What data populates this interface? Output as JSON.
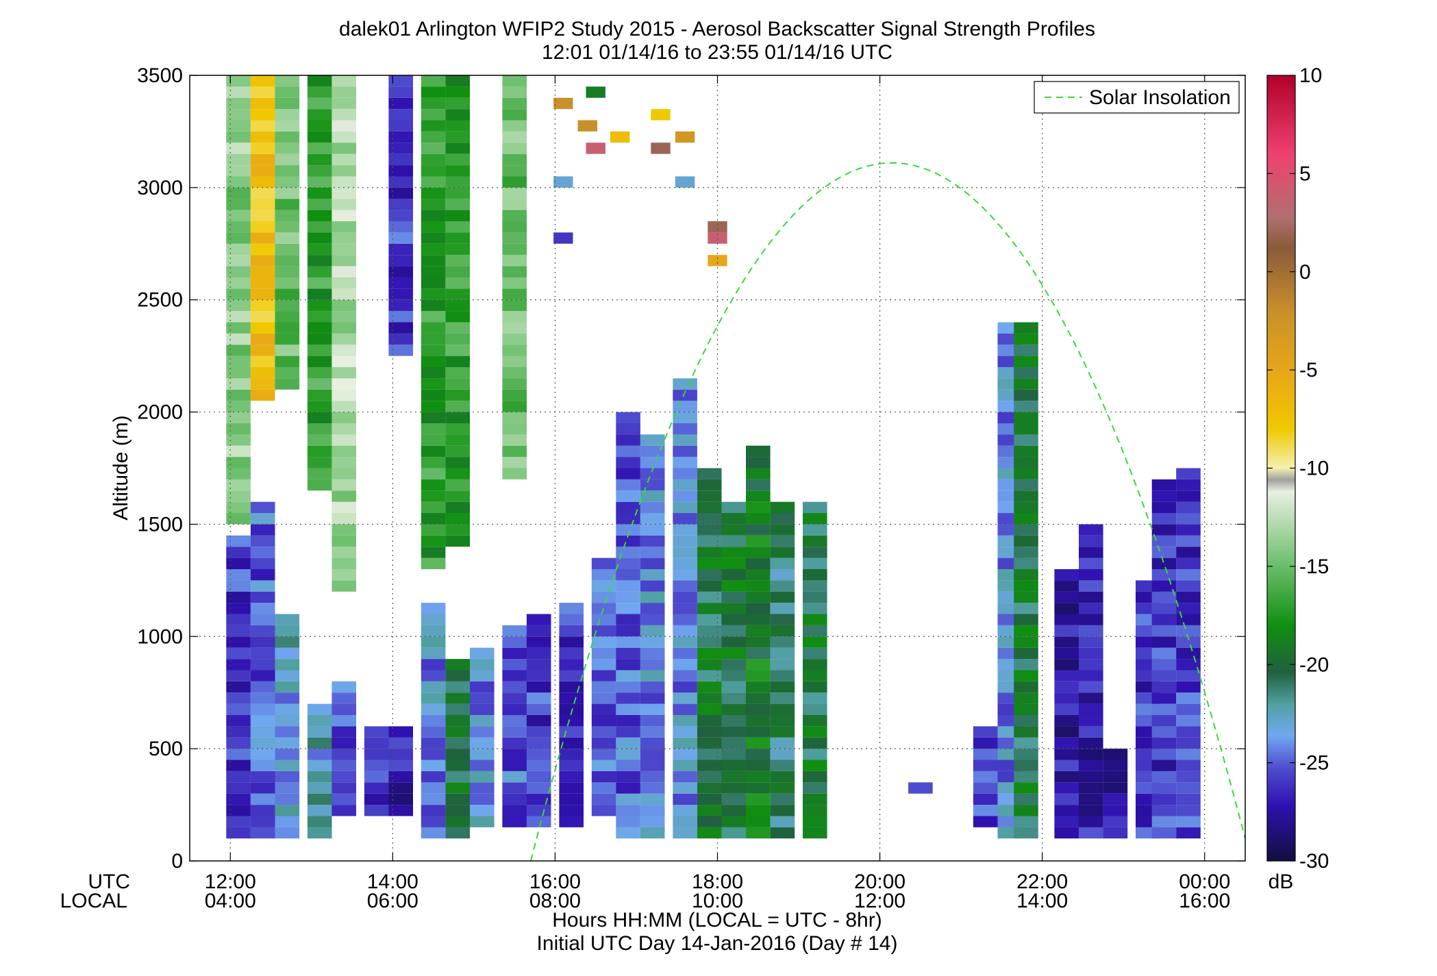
{
  "chart_data": {
    "type": "heatmap",
    "title": "dalek01 Arlington WFIP2 Study 2015 - Aerosol Backscatter Signal Strength Profiles",
    "subtitle": "12:01 01/14/16 to 23:55 01/14/16  UTC",
    "xlabel": "Hours HH:MM  (LOCAL = UTC - 8hr)",
    "xlabel2": "Initial UTC Day 14-Jan-2016 (Day # 14)",
    "ylabel": "Altitude (m)",
    "xrow_utc_label": "UTC",
    "xrow_local_label": "LOCAL",
    "x_utc_ticks": [
      "12:00",
      "14:00",
      "16:00",
      "18:00",
      "20:00",
      "22:00",
      "00:00"
    ],
    "x_local_ticks": [
      "04:00",
      "06:00",
      "08:00",
      "10:00",
      "12:00",
      "14:00",
      "16:00"
    ],
    "x_tick_hours": [
      12,
      14,
      16,
      18,
      20,
      22,
      24
    ],
    "xlim_hours": [
      11.5,
      24.5
    ],
    "ylim": [
      0,
      3500
    ],
    "y_ticks": [
      0,
      500,
      1000,
      1500,
      2000,
      2500,
      3000,
      3500
    ],
    "grid": true,
    "legend": {
      "placement": "top-right",
      "entries": [
        "Solar Insolation"
      ]
    },
    "colorbar": {
      "unit": "dB",
      "range": [
        -30,
        10
      ],
      "ticks": [
        10,
        5,
        0,
        -5,
        -10,
        -15,
        -20,
        -25,
        -30
      ]
    },
    "solar_insolation": {
      "style": "dashed",
      "color": "#33dd33",
      "start_hour": 15.7,
      "peak_hour": 20.15,
      "peak_altitude_m": 3110,
      "end_hour": 24.5,
      "end_altitude_m": 100
    },
    "profiles": [
      {
        "hour": 12.1,
        "bottom_m": 100,
        "top_m": 1450,
        "dbz": -26
      },
      {
        "hour": 12.1,
        "bottom_m": 1500,
        "top_m": 3500,
        "dbz": -14
      },
      {
        "hour": 12.4,
        "bottom_m": 100,
        "top_m": 1600,
        "dbz": -25
      },
      {
        "hour": 12.4,
        "bottom_m": 2050,
        "top_m": 3500,
        "dbz": -7
      },
      {
        "hour": 12.7,
        "bottom_m": 100,
        "top_m": 1100,
        "dbz": -23
      },
      {
        "hour": 12.7,
        "bottom_m": 2100,
        "top_m": 3500,
        "dbz": -15
      },
      {
        "hour": 13.1,
        "bottom_m": 100,
        "top_m": 700,
        "dbz": -23
      },
      {
        "hour": 13.1,
        "bottom_m": 1650,
        "top_m": 3500,
        "dbz": -17
      },
      {
        "hour": 13.4,
        "bottom_m": 200,
        "top_m": 800,
        "dbz": -25
      },
      {
        "hour": 13.4,
        "bottom_m": 1200,
        "top_m": 3500,
        "dbz": -13
      },
      {
        "hour": 13.8,
        "bottom_m": 200,
        "top_m": 600,
        "dbz": -26
      },
      {
        "hour": 14.1,
        "bottom_m": 200,
        "top_m": 600,
        "dbz": -27
      },
      {
        "hour": 14.1,
        "bottom_m": 2250,
        "top_m": 3500,
        "dbz": -26
      },
      {
        "hour": 14.5,
        "bottom_m": 100,
        "top_m": 1150,
        "dbz": -24
      },
      {
        "hour": 14.5,
        "bottom_m": 1300,
        "top_m": 3500,
        "dbz": -17
      },
      {
        "hour": 14.8,
        "bottom_m": 100,
        "top_m": 900,
        "dbz": -20
      },
      {
        "hour": 14.8,
        "bottom_m": 1400,
        "top_m": 3500,
        "dbz": -17
      },
      {
        "hour": 15.1,
        "bottom_m": 150,
        "top_m": 950,
        "dbz": -24
      },
      {
        "hour": 15.5,
        "bottom_m": 150,
        "top_m": 1050,
        "dbz": -25
      },
      {
        "hour": 15.5,
        "bottom_m": 1700,
        "top_m": 3500,
        "dbz": -15
      },
      {
        "hour": 15.8,
        "bottom_m": 150,
        "top_m": 1100,
        "dbz": -26
      },
      {
        "hour": 16.2,
        "bottom_m": 150,
        "top_m": 1150,
        "dbz": -26
      },
      {
        "hour": 16.6,
        "bottom_m": 200,
        "top_m": 1350,
        "dbz": -25
      },
      {
        "hour": 16.9,
        "bottom_m": 100,
        "top_m": 2000,
        "dbz": -25
      },
      {
        "hour": 17.2,
        "bottom_m": 100,
        "top_m": 1900,
        "dbz": -24
      },
      {
        "hour": 17.6,
        "bottom_m": 100,
        "top_m": 2150,
        "dbz": -24
      },
      {
        "hour": 17.9,
        "bottom_m": 100,
        "top_m": 1750,
        "dbz": -20
      },
      {
        "hour": 18.2,
        "bottom_m": 100,
        "top_m": 1600,
        "dbz": -20
      },
      {
        "hour": 18.5,
        "bottom_m": 100,
        "top_m": 1850,
        "dbz": -19
      },
      {
        "hour": 18.8,
        "bottom_m": 100,
        "top_m": 1600,
        "dbz": -21
      },
      {
        "hour": 19.2,
        "bottom_m": 100,
        "top_m": 1600,
        "dbz": -20
      },
      {
        "hour": 20.5,
        "bottom_m": 300,
        "top_m": 350,
        "dbz": -26
      },
      {
        "hour": 21.3,
        "bottom_m": 150,
        "top_m": 600,
        "dbz": -26
      },
      {
        "hour": 21.6,
        "bottom_m": 100,
        "top_m": 2400,
        "dbz": -24
      },
      {
        "hour": 21.8,
        "bottom_m": 100,
        "top_m": 2400,
        "dbz": -20
      },
      {
        "hour": 22.3,
        "bottom_m": 100,
        "top_m": 1300,
        "dbz": -27
      },
      {
        "hour": 22.6,
        "bottom_m": 100,
        "top_m": 1500,
        "dbz": -27
      },
      {
        "hour": 22.9,
        "bottom_m": 100,
        "top_m": 500,
        "dbz": -27
      },
      {
        "hour": 23.3,
        "bottom_m": 100,
        "top_m": 1250,
        "dbz": -26
      },
      {
        "hour": 23.5,
        "bottom_m": 100,
        "top_m": 1700,
        "dbz": -26
      },
      {
        "hour": 23.8,
        "bottom_m": 100,
        "top_m": 1750,
        "dbz": -26
      }
    ],
    "sparse_cells": [
      {
        "hour": 16.1,
        "altitude_m": 3350,
        "dbz": -2
      },
      {
        "hour": 16.4,
        "altitude_m": 3250,
        "dbz": -2
      },
      {
        "hour": 16.5,
        "altitude_m": 3150,
        "dbz": 4
      },
      {
        "hour": 16.5,
        "altitude_m": 3400,
        "dbz": -19
      },
      {
        "hour": 16.8,
        "altitude_m": 3200,
        "dbz": -7
      },
      {
        "hour": 17.3,
        "altitude_m": 3300,
        "dbz": -8
      },
      {
        "hour": 17.3,
        "altitude_m": 3150,
        "dbz": 2
      },
      {
        "hour": 17.6,
        "altitude_m": 3200,
        "dbz": -3
      },
      {
        "hour": 17.6,
        "altitude_m": 3000,
        "dbz": -23
      },
      {
        "hour": 18.0,
        "altitude_m": 2800,
        "dbz": 2
      },
      {
        "hour": 18.0,
        "altitude_m": 2750,
        "dbz": 4
      },
      {
        "hour": 18.0,
        "altitude_m": 2650,
        "dbz": -5
      },
      {
        "hour": 16.1,
        "altitude_m": 3000,
        "dbz": -23
      },
      {
        "hour": 16.1,
        "altitude_m": 2750,
        "dbz": -26
      }
    ]
  }
}
